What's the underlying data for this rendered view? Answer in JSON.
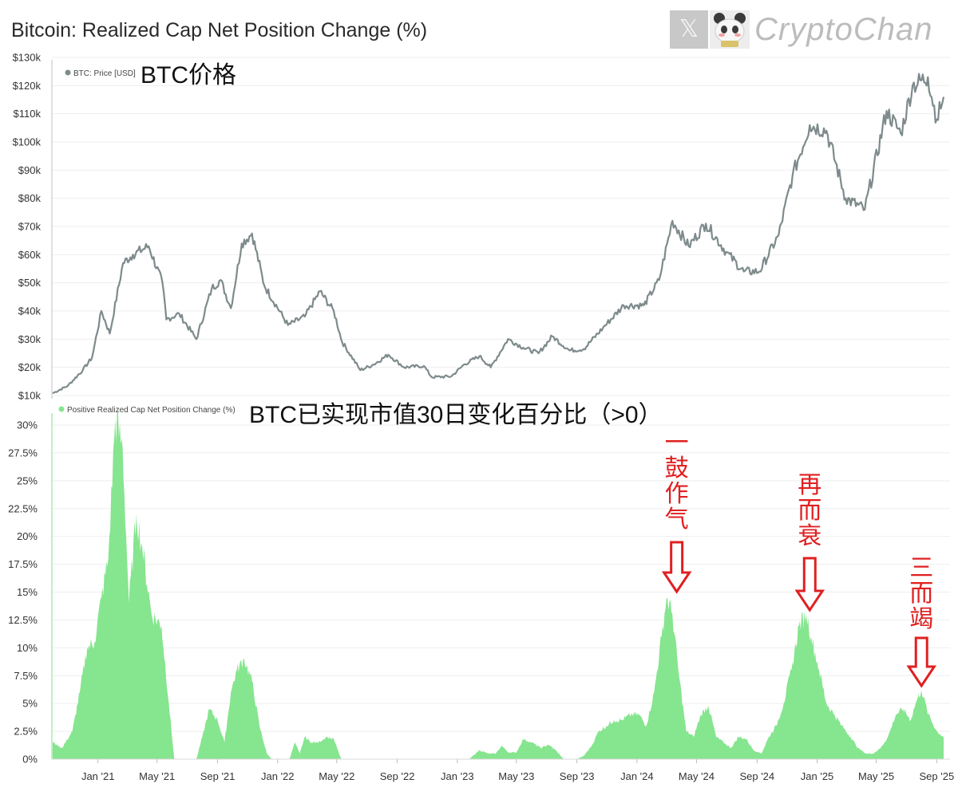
{
  "title": "Bitcoin: Realized Cap Net Position Change (%)",
  "watermark": {
    "x_mark": "𝕏",
    "text": "CryptoChan"
  },
  "colors": {
    "price": "#7e8a8c",
    "area": "#86e58f",
    "annotation": "#e02020"
  },
  "chart_data": [
    {
      "type": "line",
      "legend": "BTC: Price [USD]",
      "overlay_label": "BTC价格",
      "ylim": [
        10000,
        130000
      ],
      "y_ticks": [
        "$10k",
        "$20k",
        "$30k",
        "$40k",
        "$50k",
        "$60k",
        "$70k",
        "$80k",
        "$90k",
        "$100k",
        "$110k",
        "$120k",
        "$130k"
      ],
      "series": [
        {
          "name": "BTC: Price [USD]",
          "x": [
            "2020-10-01",
            "2020-11-01",
            "2020-12-01",
            "2020-12-20",
            "2021-01-08",
            "2021-01-25",
            "2021-02-21",
            "2021-03-13",
            "2021-04-14",
            "2021-05-12",
            "2021-05-20",
            "2021-06-15",
            "2021-07-20",
            "2021-08-20",
            "2021-09-07",
            "2021-09-28",
            "2021-10-20",
            "2021-11-10",
            "2021-12-05",
            "2022-01-22",
            "2022-02-25",
            "2022-03-28",
            "2022-04-25",
            "2022-05-12",
            "2022-06-18",
            "2022-07-15",
            "2022-08-14",
            "2022-09-15",
            "2022-10-25",
            "2022-11-10",
            "2022-12-20",
            "2023-01-15",
            "2023-02-15",
            "2023-03-10",
            "2023-04-14",
            "2023-05-15",
            "2023-06-15",
            "2023-07-13",
            "2023-08-17",
            "2023-09-15",
            "2023-10-24",
            "2023-12-05",
            "2024-01-15",
            "2024-02-15",
            "2024-03-13",
            "2024-04-15",
            "2024-05-20",
            "2024-06-30",
            "2024-08-05",
            "2024-09-06",
            "2024-10-15",
            "2024-11-12",
            "2024-12-17",
            "2025-01-20",
            "2025-02-28",
            "2025-04-08",
            "2025-05-22",
            "2025-06-20",
            "2025-07-14",
            "2025-08-14",
            "2025-09-01",
            "2025-09-15"
          ],
          "values": [
            10800,
            13500,
            19000,
            23500,
            40000,
            32000,
            57000,
            60000,
            63000,
            50000,
            37000,
            39000,
            30000,
            48000,
            51000,
            41000,
            64000,
            67500,
            49000,
            35000,
            38000,
            47000,
            40000,
            29000,
            19000,
            21000,
            24500,
            20000,
            20500,
            16500,
            16800,
            21000,
            24000,
            20000,
            30000,
            27000,
            25000,
            31000,
            26000,
            26500,
            34000,
            42000,
            42000,
            51000,
            72000,
            63000,
            71000,
            61000,
            54000,
            54000,
            67000,
            88000,
            106000,
            104000,
            80000,
            76000,
            111000,
            103000,
            120000,
            123000,
            108000,
            116000
          ]
        }
      ]
    },
    {
      "type": "area",
      "legend": "Positive Realized Cap Net Position Change (%)",
      "overlay_label": "BTC已实现市值30日变化百分比（>0）",
      "ylim": [
        0,
        30
      ],
      "y_ticks": [
        "0%",
        "2.5%",
        "5%",
        "7.5%",
        "10%",
        "12.5%",
        "15%",
        "17.5%",
        "20%",
        "22.5%",
        "25%",
        "27.5%",
        "30%"
      ],
      "x_ticks": [
        "Jan '21",
        "May '21",
        "Sep '21",
        "Jan '22",
        "May '22",
        "Sep '22",
        "Jan '23",
        "May '23",
        "Sep '23",
        "Jan '24",
        "May '24",
        "Sep '24",
        "Jan '25",
        "May '25",
        "Sep '25"
      ],
      "series": [
        {
          "name": "Positive Realized Cap Net Position Change (%)",
          "x": [
            "2020-10-01",
            "2020-10-20",
            "2020-11-10",
            "2020-11-25",
            "2020-12-10",
            "2020-12-25",
            "2021-01-08",
            "2021-01-22",
            "2021-02-05",
            "2021-02-20",
            "2021-03-05",
            "2021-03-20",
            "2021-04-01",
            "2021-04-20",
            "2021-05-10",
            "2021-05-25",
            "2021-06-05",
            "2021-07-20",
            "2021-08-01",
            "2021-08-15",
            "2021-09-01",
            "2021-09-15",
            "2021-09-28",
            "2021-10-10",
            "2021-10-25",
            "2021-11-10",
            "2021-11-25",
            "2021-12-10",
            "2021-12-20",
            "2022-01-25",
            "2022-02-05",
            "2022-02-15",
            "2022-02-25",
            "2022-03-10",
            "2022-03-25",
            "2022-04-10",
            "2022-04-25",
            "2022-05-10",
            "2022-12-25",
            "2023-01-10",
            "2023-01-25",
            "2023-02-15",
            "2023-03-05",
            "2023-03-20",
            "2023-04-01",
            "2023-04-15",
            "2023-05-01",
            "2023-05-15",
            "2023-06-01",
            "2023-06-20",
            "2023-07-05",
            "2023-07-20",
            "2023-08-05",
            "2023-08-15",
            "2023-09-01",
            "2023-09-15",
            "2023-10-01",
            "2023-10-15",
            "2023-11-01",
            "2023-11-15",
            "2023-12-01",
            "2023-12-20",
            "2024-01-05",
            "2024-01-20",
            "2024-02-05",
            "2024-02-20",
            "2024-03-01",
            "2024-03-13",
            "2024-03-25",
            "2024-04-10",
            "2024-04-25",
            "2024-05-10",
            "2024-05-25",
            "2024-06-10",
            "2024-06-25",
            "2024-07-10",
            "2024-07-25",
            "2024-08-10",
            "2024-08-25",
            "2024-09-10",
            "2024-09-25",
            "2024-10-10",
            "2024-10-25",
            "2024-11-10",
            "2024-11-25",
            "2024-12-10",
            "2024-12-20",
            "2025-01-05",
            "2025-01-20",
            "2025-02-05",
            "2025-02-20",
            "2025-03-10",
            "2025-03-25",
            "2025-04-10",
            "2025-04-25",
            "2025-05-10",
            "2025-05-25",
            "2025-06-10",
            "2025-06-25",
            "2025-07-10",
            "2025-07-20",
            "2025-08-01",
            "2025-08-15",
            "2025-09-01",
            "2025-09-15"
          ],
          "values": [
            1.5,
            1.0,
            2.5,
            6.0,
            10.0,
            10.5,
            14.5,
            18.0,
            30.5,
            28.0,
            14.0,
            22.0,
            19.0,
            13.0,
            12.0,
            5.0,
            0.0,
            0.0,
            2.0,
            4.5,
            3.5,
            1.5,
            6.0,
            8.0,
            9.0,
            7.0,
            3.0,
            0.5,
            0.0,
            0.0,
            1.5,
            0.5,
            2.0,
            1.5,
            1.5,
            2.0,
            1.8,
            0.0,
            0.0,
            0.0,
            0.0,
            0.8,
            0.5,
            0.5,
            1.2,
            0.6,
            0.6,
            1.8,
            1.5,
            1.0,
            1.3,
            0.8,
            0.0,
            0.0,
            0.0,
            0.3,
            1.2,
            2.5,
            3.0,
            3.5,
            3.5,
            4.0,
            4.0,
            3.0,
            6.0,
            11.0,
            14.5,
            13.0,
            8.0,
            2.5,
            2.0,
            4.0,
            4.8,
            2.0,
            1.5,
            1.0,
            2.0,
            1.8,
            0.8,
            0.5,
            2.0,
            3.0,
            5.0,
            8.0,
            12.0,
            13.0,
            11.0,
            8.0,
            5.0,
            4.0,
            3.0,
            2.0,
            1.0,
            0.5,
            0.5,
            1.0,
            2.0,
            4.0,
            4.5,
            3.5,
            5.0,
            6.2,
            4.0,
            2.5,
            2.0
          ]
        }
      ]
    }
  ],
  "annotations": [
    {
      "text": "一鼓作气",
      "target": "2024-03-13"
    },
    {
      "text": "再而衰",
      "target": "2024-12-17"
    },
    {
      "text": "三而竭",
      "target": "2025-08-01"
    }
  ]
}
